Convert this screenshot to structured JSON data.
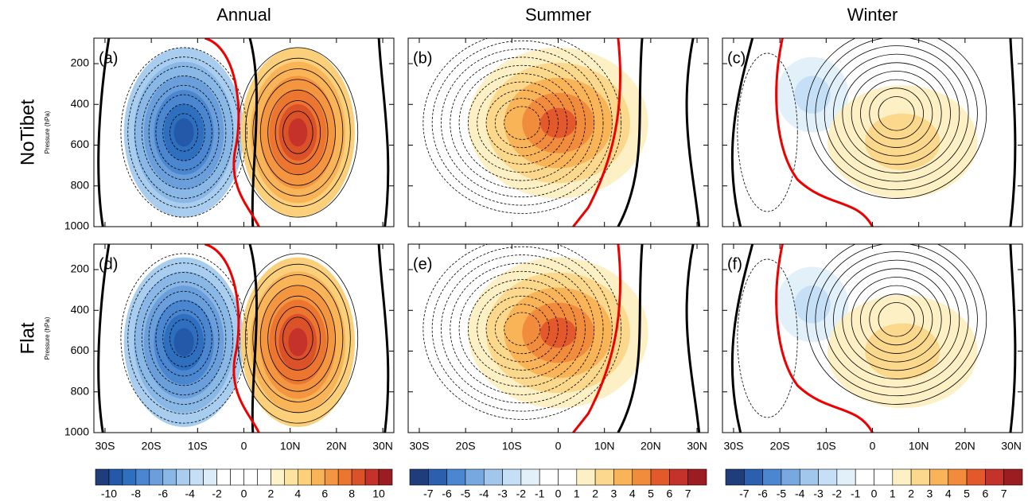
{
  "column_titles": [
    "Annual",
    "Summer",
    "Winter"
  ],
  "row_labels": [
    "NoTibet",
    "Flat"
  ],
  "y_axis_label": "Pressure (hPa)",
  "panel_labels": [
    "(a)",
    "(b)",
    "(c)",
    "(d)",
    "(e)",
    "(f)"
  ],
  "ylim": [
    1000,
    75
  ],
  "yticks": [
    200,
    400,
    600,
    800,
    1000
  ],
  "xlim": [
    -32.4,
    32.4
  ],
  "xticks": [
    {
      "value": -30,
      "label": "30S"
    },
    {
      "value": -20,
      "label": "20S"
    },
    {
      "value": -10,
      "label": "10S"
    },
    0,
    {
      "value": 10,
      "label": "10N"
    },
    {
      "value": 20,
      "label": "20N"
    },
    {
      "value": 30,
      "label": "30N"
    }
  ],
  "colorbars": [
    {
      "ticks": [
        -10,
        -8,
        -6,
        -4,
        -2,
        0,
        2,
        4,
        6,
        8,
        10
      ],
      "colors": [
        "#1f3d7a",
        "#2458a8",
        "#2f6fc0",
        "#4a87d0",
        "#6a9fdc",
        "#8ab8e6",
        "#a8cdef",
        "#c5e0f6",
        "#dcedf9",
        "#ffffff",
        "#ffffff",
        "#ffffff",
        "#ffffff",
        "#fdf2c9",
        "#fde3a0",
        "#fccf7a",
        "#f9b458",
        "#f4953f",
        "#ec7530",
        "#dc5228",
        "#c4322a",
        "#9b1d22"
      ]
    },
    {
      "ticks": [
        -7,
        -6,
        -5,
        -4,
        -3,
        -2,
        -1,
        0,
        1,
        2,
        3,
        4,
        5,
        6,
        7
      ],
      "colors": [
        "#1f3d7a",
        "#2c5fae",
        "#4a87d0",
        "#77a8e0",
        "#a1c8ec",
        "#c5e0f6",
        "#e2f0fa",
        "#ffffff",
        "#ffffff",
        "#fdf0c4",
        "#fcd88c",
        "#f9b458",
        "#f28c3d",
        "#e4592b",
        "#c4322a",
        "#9b1d22"
      ]
    },
    {
      "ticks": [
        -7,
        -6,
        -5,
        -4,
        -3,
        -2,
        -1,
        0,
        1,
        2,
        3,
        4,
        5,
        6,
        7
      ],
      "colors": [
        "#1f3d7a",
        "#2c5fae",
        "#4a87d0",
        "#77a8e0",
        "#a1c8ec",
        "#c5e0f6",
        "#e2f0fa",
        "#ffffff",
        "#ffffff",
        "#fdf0c4",
        "#fcd88c",
        "#f9b458",
        "#f28c3d",
        "#e4592b",
        "#c4322a",
        "#9b1d22"
      ]
    }
  ]
}
